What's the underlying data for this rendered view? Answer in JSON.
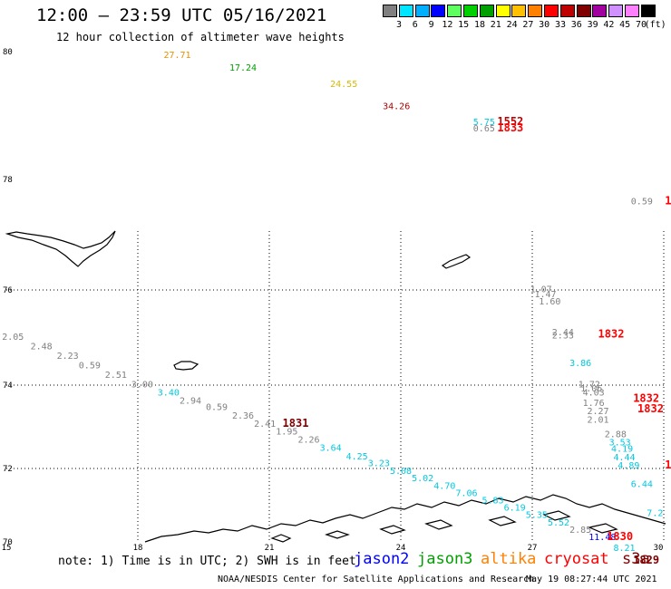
{
  "header": {
    "title": "12:00 – 23:59 UTC 05/16/2021",
    "subtitle": "12 hour collection of altimeter wave heights"
  },
  "colorbar": {
    "unit_label": "(ft)",
    "bins": [
      {
        "label": "3",
        "color": "#808080"
      },
      {
        "label": "6",
        "color": "#00e5ff"
      },
      {
        "label": "9",
        "color": "#00b0ff"
      },
      {
        "label": "12",
        "color": "#0000ff"
      },
      {
        "label": "15",
        "color": "#60ff60"
      },
      {
        "label": "18",
        "color": "#00d000"
      },
      {
        "label": "21",
        "color": "#00a000"
      },
      {
        "label": "24",
        "color": "#ffff00"
      },
      {
        "label": "27",
        "color": "#ffc000"
      },
      {
        "label": "30",
        "color": "#ff8000"
      },
      {
        "label": "33",
        "color": "#ff0000"
      },
      {
        "label": "36",
        "color": "#c00000"
      },
      {
        "label": "39",
        "color": "#800000"
      },
      {
        "label": "42",
        "color": "#a000a0"
      },
      {
        "label": "45",
        "color": "#d090ff"
      },
      {
        "label": "70",
        "color": "#ff80ff"
      },
      {
        "label": "",
        "color": "#000000"
      }
    ]
  },
  "axes": {
    "lat_labels": [
      "80",
      "78",
      "76",
      "74",
      "72",
      "70"
    ],
    "lon_labels": [
      "15",
      "18",
      "21",
      "24",
      "27",
      "30"
    ]
  },
  "observations": [
    {
      "value": "27.71",
      "lon": 18.9,
      "lat": 79.9,
      "color": "#e89000"
    },
    {
      "value": "17.24",
      "lon": 20.4,
      "lat": 79.7,
      "color": "#00a000"
    },
    {
      "value": "24.55",
      "lon": 22.7,
      "lat": 79.45,
      "color": "#d8b800"
    },
    {
      "value": "34.26",
      "lon": 23.9,
      "lat": 79.1,
      "color": "#b00000"
    },
    {
      "value": "5.75",
      "lon": 25.9,
      "lat": 78.85,
      "color": "#00c8e0"
    },
    {
      "value": "0.65",
      "lon": 25.9,
      "lat": 78.75,
      "color": "#808080"
    },
    {
      "value": "0.59",
      "lon": 29.5,
      "lat": 77.55,
      "color": "#808080"
    },
    {
      "value": "1.07",
      "lon": 27.2,
      "lat": 75.95,
      "color": "#808080"
    },
    {
      "value": "1.47",
      "lon": 27.3,
      "lat": 75.85,
      "color": "#808080"
    },
    {
      "value": "1.60",
      "lon": 27.4,
      "lat": 75.7,
      "color": "#808080"
    },
    {
      "value": "2.44",
      "lon": 27.7,
      "lat": 75.05,
      "color": "#808080"
    },
    {
      "value": "2.33",
      "lon": 27.7,
      "lat": 74.98,
      "color": "#808080"
    },
    {
      "value": "3.86",
      "lon": 28.1,
      "lat": 74.4,
      "color": "#00c8e0"
    },
    {
      "value": "1.72",
      "lon": 28.3,
      "lat": 73.95,
      "color": "#808080"
    },
    {
      "value": "1.06",
      "lon": 28.35,
      "lat": 73.85,
      "color": "#808080"
    },
    {
      "value": "4.03",
      "lon": 28.4,
      "lat": 73.75,
      "color": "#808080"
    },
    {
      "value": "1.76",
      "lon": 28.4,
      "lat": 73.5,
      "color": "#808080"
    },
    {
      "value": "2.27",
      "lon": 28.5,
      "lat": 73.3,
      "color": "#808080"
    },
    {
      "value": "2.01",
      "lon": 28.5,
      "lat": 73.1,
      "color": "#808080"
    },
    {
      "value": "2.88",
      "lon": 28.9,
      "lat": 72.75,
      "color": "#808080"
    },
    {
      "value": "3.53",
      "lon": 29.0,
      "lat": 72.55,
      "color": "#00c8e0"
    },
    {
      "value": "4.19",
      "lon": 29.05,
      "lat": 72.4,
      "color": "#00c8e0"
    },
    {
      "value": "4.44",
      "lon": 29.1,
      "lat": 72.2,
      "color": "#00c8e0"
    },
    {
      "value": "4.89",
      "lon": 29.2,
      "lat": 72.0,
      "color": "#00c8e0"
    },
    {
      "value": "6.44",
      "lon": 29.5,
      "lat": 71.5,
      "color": "#00c8e0"
    },
    {
      "value": "7.2",
      "lon": 29.8,
      "lat": 70.7,
      "color": "#00c8e0"
    },
    {
      "value": "2.05",
      "lon": 15.15,
      "lat": 74.95,
      "color": "#808080"
    },
    {
      "value": "2.48",
      "lon": 15.8,
      "lat": 74.75,
      "color": "#808080"
    },
    {
      "value": "2.23",
      "lon": 16.4,
      "lat": 74.55,
      "color": "#808080"
    },
    {
      "value": "0.59",
      "lon": 16.9,
      "lat": 74.35,
      "color": "#808080"
    },
    {
      "value": "2.51",
      "lon": 17.5,
      "lat": 74.15,
      "color": "#808080"
    },
    {
      "value": "3.00",
      "lon": 18.1,
      "lat": 73.95,
      "color": "#808080"
    },
    {
      "value": "3.40",
      "lon": 18.7,
      "lat": 73.75,
      "color": "#00c8e0"
    },
    {
      "value": "2.94",
      "lon": 19.2,
      "lat": 73.55,
      "color": "#808080"
    },
    {
      "value": "0.59",
      "lon": 19.8,
      "lat": 73.4,
      "color": "#808080"
    },
    {
      "value": "2.36",
      "lon": 20.4,
      "lat": 73.2,
      "color": "#808080"
    },
    {
      "value": "2.41",
      "lon": 20.9,
      "lat": 73.0,
      "color": "#808080"
    },
    {
      "value": "1.95",
      "lon": 21.4,
      "lat": 72.82,
      "color": "#808080"
    },
    {
      "value": "2.26",
      "lon": 21.9,
      "lat": 72.62,
      "color": "#808080"
    },
    {
      "value": "3.64",
      "lon": 22.4,
      "lat": 72.42,
      "color": "#00c8e0"
    },
    {
      "value": "4.25",
      "lon": 23.0,
      "lat": 72.22,
      "color": "#00c8e0"
    },
    {
      "value": "3.23",
      "lon": 23.5,
      "lat": 72.05,
      "color": "#00c8e0"
    },
    {
      "value": "5.08",
      "lon": 24.0,
      "lat": 71.85,
      "color": "#00c8e0"
    },
    {
      "value": "5.02",
      "lon": 24.5,
      "lat": 71.65,
      "color": "#00c8e0"
    },
    {
      "value": "4.70",
      "lon": 25.0,
      "lat": 71.45,
      "color": "#00c8e0"
    },
    {
      "value": "7.06",
      "lon": 25.5,
      "lat": 71.25,
      "color": "#00c8e0"
    },
    {
      "value": "5.83",
      "lon": 26.1,
      "lat": 71.05,
      "color": "#00c8e0"
    },
    {
      "value": "6.19",
      "lon": 26.6,
      "lat": 70.85,
      "color": "#00c8e0"
    },
    {
      "value": "5.35",
      "lon": 27.1,
      "lat": 70.65,
      "color": "#00c8e0"
    },
    {
      "value": "5.52",
      "lon": 27.6,
      "lat": 70.45,
      "color": "#00c8e0"
    },
    {
      "value": "2.85",
      "lon": 28.1,
      "lat": 70.25,
      "color": "#808080"
    },
    {
      "value": "11.48",
      "lon": 28.6,
      "lat": 70.05,
      "color": "#0000ff"
    },
    {
      "value": "8.21",
      "lon": 29.1,
      "lat": 69.75,
      "color": "#00c8e0"
    }
  ],
  "pass_times": [
    {
      "label": "1552",
      "lon": 26.5,
      "lat": 78.85,
      "color": "#c00000"
    },
    {
      "label": "1833",
      "lon": 26.5,
      "lat": 78.75,
      "color": "#ff0000"
    },
    {
      "label": "1",
      "lon": 30.1,
      "lat": 77.55,
      "color": "#ff0000"
    },
    {
      "label": "1832",
      "lon": 28.8,
      "lat": 75.0,
      "color": "#ff0000"
    },
    {
      "label": "1832",
      "lon": 29.6,
      "lat": 73.6,
      "color": "#ff0000"
    },
    {
      "label": "1832",
      "lon": 29.7,
      "lat": 73.35,
      "color": "#ff0000"
    },
    {
      "label": "1831",
      "lon": 21.6,
      "lat": 73.0,
      "color": "#800000"
    },
    {
      "label": "1",
      "lon": 30.1,
      "lat": 72.0,
      "color": "#ff0000"
    },
    {
      "label": "1830",
      "lon": 29.0,
      "lat": 70.05,
      "color": "#ff0000"
    },
    {
      "label": "1829",
      "lon": 29.6,
      "lat": 69.4,
      "color": "#800000"
    }
  ],
  "footer": {
    "note": "note: 1) Time is in UTC; 2) SWH is in feet",
    "legend": [
      {
        "label": "jason2",
        "color": "#0000ff"
      },
      {
        "label": "jason3",
        "color": "#00a000"
      },
      {
        "label": "altika",
        "color": "#ff8000"
      },
      {
        "label": "cryosat",
        "color": "#ff0000"
      },
      {
        "label": "s3a",
        "color": "#800000"
      }
    ],
    "credit": "NOAA/NESDIS Center for Satellite Applications and Research",
    "timestamp": "May 19 08:27:44 UTC 2021"
  }
}
